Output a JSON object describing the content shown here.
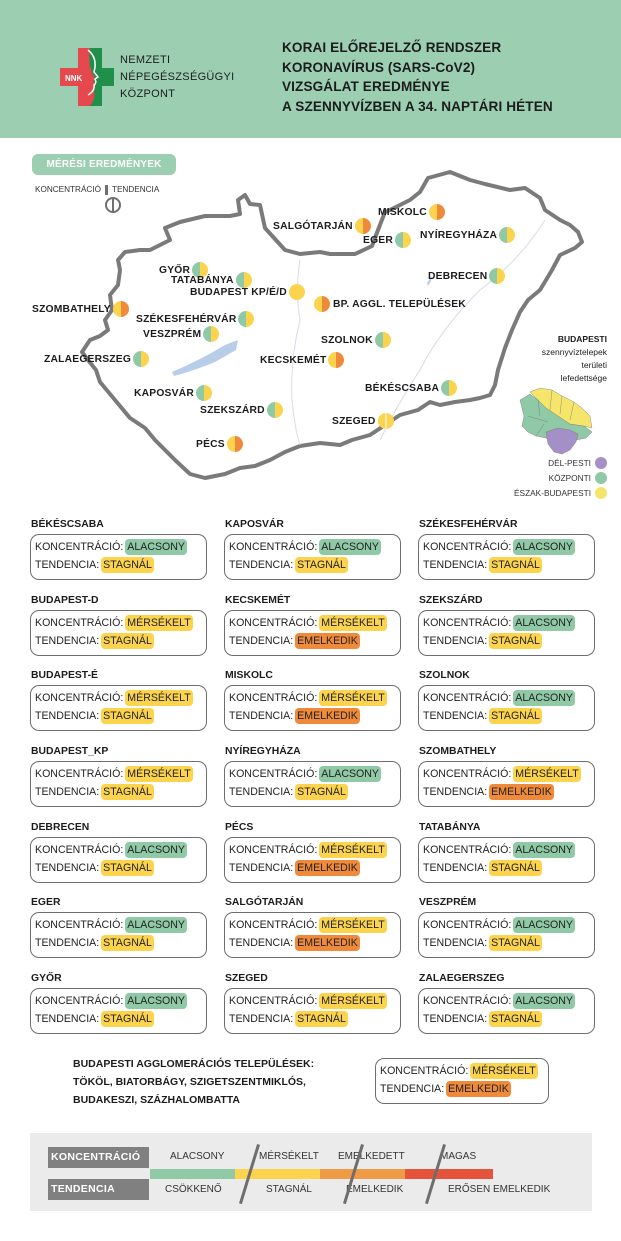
{
  "header": {
    "org": [
      "NEMZETI",
      "NÉPEGÉSZSÉGÜGYI",
      "KÖZPONT"
    ],
    "logo_text": "NNK",
    "title": [
      "KORAI ELŐREJELZŐ RENDSZER",
      "KORONAVÍRUS (SARS-CoV2)",
      "VIZSGÁLAT EREDMÉNYE",
      "A SZENNYVÍZBEN A 34. NAPTÁRI HÉTEN"
    ]
  },
  "colors": {
    "header_bg": "#9ccfb2",
    "alacsony": "#8fc9a6",
    "mersekelt": "#fcd34d",
    "emelkedik": "#ef8a3a",
    "magas": "#e5533a",
    "del_pesti": "#a58fc7",
    "kozponti": "#8fc9a6",
    "eszak_budapesti": "#f5e56b"
  },
  "map": {
    "section_label": "MÉRÉSI EREDMÉNYEK",
    "legend_left": "KONCENTRÁCIÓ",
    "legend_right": "TENDENCIA",
    "cities": [
      {
        "name": "MISKOLC",
        "left": "yellow",
        "right": "orange"
      },
      {
        "name": "SALGÓTARJÁN",
        "left": "yellow",
        "right": "orange"
      },
      {
        "name": "EGER",
        "left": "green",
        "right": "yellow"
      },
      {
        "name": "NYÍREGYHÁZA",
        "left": "green",
        "right": "yellow"
      },
      {
        "name": "GYŐR",
        "left": "green",
        "right": "yellow"
      },
      {
        "name": "TATABÁNYA",
        "left": "green",
        "right": "yellow"
      },
      {
        "name": "BUDAPEST KP/É/D",
        "left": "yellow",
        "right": "yellow"
      },
      {
        "name": "DEBRECEN",
        "left": "green",
        "right": "yellow"
      },
      {
        "name": "BP. AGGL. TELEPÜLÉSEK",
        "left": "yellow",
        "right": "orange"
      },
      {
        "name": "SZOMBATHELY",
        "left": "yellow",
        "right": "orange"
      },
      {
        "name": "SZÉKESFEHÉRVÁR",
        "left": "green",
        "right": "yellow"
      },
      {
        "name": "VESZPRÉM",
        "left": "green",
        "right": "yellow"
      },
      {
        "name": "SZOLNOK",
        "left": "green",
        "right": "yellow"
      },
      {
        "name": "ZALAEGERSZEG",
        "left": "green",
        "right": "yellow"
      },
      {
        "name": "KECSKEMÉT",
        "left": "yellow",
        "right": "orange"
      },
      {
        "name": "KAPOSVÁR",
        "left": "green",
        "right": "yellow"
      },
      {
        "name": "BÉKÉSCSABA",
        "left": "green",
        "right": "yellow"
      },
      {
        "name": "SZEKSZÁRD",
        "left": "green",
        "right": "yellow"
      },
      {
        "name": "SZEGED",
        "left": "yellow",
        "right": "yellow"
      },
      {
        "name": "PÉCS",
        "left": "yellow",
        "right": "orange"
      }
    ],
    "bp_legend": {
      "title_bold": "BUDAPESTI",
      "title_lines": [
        "szennyvíztelepek",
        "területi",
        "lefedettsége"
      ],
      "keys": [
        "DÉL-PESTI",
        "KÖZPONTI",
        "ÉSZAK-BUDAPESTI"
      ]
    }
  },
  "labels": {
    "konc": "KONCENTRÁCIÓ:",
    "tend": "TENDENCIA:"
  },
  "cards": [
    {
      "name": "BÉKÉSCSABA",
      "konc": "ALACSONY",
      "kc": "green",
      "tend": "STAGNÁL",
      "tc": "yellow"
    },
    {
      "name": "KAPOSVÁR",
      "konc": "ALACSONY",
      "kc": "green",
      "tend": "STAGNÁL",
      "tc": "yellow"
    },
    {
      "name": "SZÉKESFEHÉRVÁR",
      "konc": "ALACSONY",
      "kc": "green",
      "tend": "STAGNÁL",
      "tc": "yellow"
    },
    {
      "name": "BUDAPEST-D",
      "konc": "MÉRSÉKELT",
      "kc": "yellow",
      "tend": "STAGNÁL",
      "tc": "yellow"
    },
    {
      "name": "KECSKEMÉT",
      "konc": "MÉRSÉKELT",
      "kc": "yellow",
      "tend": "EMELKEDIK",
      "tc": "orange"
    },
    {
      "name": "SZEKSZÁRD",
      "konc": "ALACSONY",
      "kc": "green",
      "tend": "STAGNÁL",
      "tc": "yellow"
    },
    {
      "name": "BUDAPEST-É",
      "konc": "MÉRSÉKELT",
      "kc": "yellow",
      "tend": "STAGNÁL",
      "tc": "yellow"
    },
    {
      "name": "MISKOLC",
      "konc": "MÉRSÉKELT",
      "kc": "yellow",
      "tend": "EMELKEDIK",
      "tc": "orange"
    },
    {
      "name": "SZOLNOK",
      "konc": "ALACSONY",
      "kc": "green",
      "tend": "STAGNÁL",
      "tc": "yellow"
    },
    {
      "name": "BUDAPEST_KP",
      "konc": "MÉRSÉKELT",
      "kc": "yellow",
      "tend": "STAGNÁL",
      "tc": "yellow"
    },
    {
      "name": "NYÍREGYHÁZA",
      "konc": "ALACSONY",
      "kc": "green",
      "tend": "STAGNÁL",
      "tc": "yellow"
    },
    {
      "name": "SZOMBATHELY",
      "konc": "MÉRSÉKELT",
      "kc": "yellow",
      "tend": "EMELKEDIK",
      "tc": "orange"
    },
    {
      "name": "DEBRECEN",
      "konc": "ALACSONY",
      "kc": "green",
      "tend": "STAGNÁL",
      "tc": "yellow"
    },
    {
      "name": "PÉCS",
      "konc": "MÉRSÉKELT",
      "kc": "yellow",
      "tend": "EMELKEDIK",
      "tc": "orange"
    },
    {
      "name": "TATABÁNYA",
      "konc": "ALACSONY",
      "kc": "green",
      "tend": "STAGNÁL",
      "tc": "yellow"
    },
    {
      "name": "EGER",
      "konc": "ALACSONY",
      "kc": "green",
      "tend": "STAGNÁL",
      "tc": "yellow"
    },
    {
      "name": "SALGÓTARJÁN",
      "konc": "MÉRSÉKELT",
      "kc": "yellow",
      "tend": "EMELKEDIK",
      "tc": "orange"
    },
    {
      "name": "VESZPRÉM",
      "konc": "ALACSONY",
      "kc": "green",
      "tend": "STAGNÁL",
      "tc": "yellow"
    },
    {
      "name": "GYŐR",
      "konc": "ALACSONY",
      "kc": "green",
      "tend": "STAGNÁL",
      "tc": "yellow"
    },
    {
      "name": "SZEGED",
      "konc": "MÉRSÉKELT",
      "kc": "yellow",
      "tend": "STAGNÁL",
      "tc": "yellow"
    },
    {
      "name": "ZALAEGERSZEG",
      "konc": "ALACSONY",
      "kc": "green",
      "tend": "STAGNÁL",
      "tc": "yellow"
    }
  ],
  "agglomeration": {
    "lines": [
      "BUDAPESTI AGGLOMERÁCIÓS TELEPÜLÉSEK:",
      "TÖKÖL, BIATORBÁGY, SZIGETSZENTMIKLÓS,",
      "BUDAKESZI, SZÁZHALOMBATTA"
    ],
    "konc": "MÉRSÉKELT",
    "kc": "yellow",
    "tend": "EMELKEDIK",
    "tc": "orange"
  },
  "scale": {
    "konc_label": "KONCENTRÁCIÓ",
    "tend_label": "TENDENCIA",
    "konc_levels": [
      "ALACSONY",
      "MÉRSÉKELT",
      "EMELKEDETT",
      "MAGAS"
    ],
    "tend_levels": [
      "CSÖKKENŐ",
      "STAGNÁL",
      "EMELKEDIK",
      "ERŐSEN EMELKEDIK"
    ]
  }
}
